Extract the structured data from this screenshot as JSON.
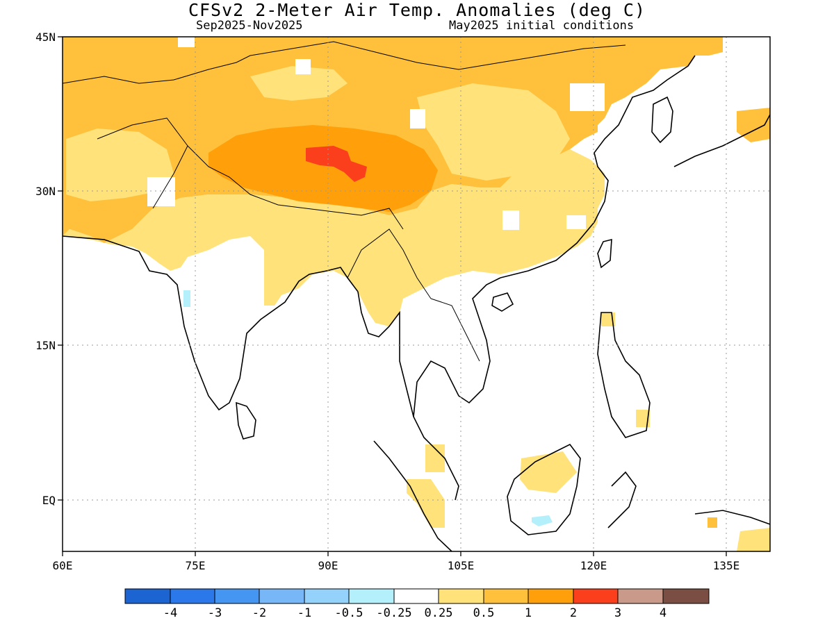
{
  "title": "CFSv2 2-Meter Air Temp. Anomalies (deg C)",
  "subtitle_left": "Sep2025-Nov2025",
  "subtitle_right": "May2025 initial conditions",
  "map": {
    "lon_range": [
      60,
      140
    ],
    "lat_range": [
      -5.5,
      45
    ],
    "lon_ticks": [
      "60E",
      "75E",
      "90E",
      "105E",
      "120E",
      "135E"
    ],
    "lat_ticks": [
      "45N",
      "30N",
      "15N",
      "EQ"
    ],
    "grid": "dotted"
  },
  "legend": {
    "labels": [
      "-4",
      "-3",
      "-2",
      "-1",
      "-0.5",
      "-0.25",
      "0.25",
      "0.5",
      "1",
      "2",
      "3",
      "4"
    ],
    "colors": [
      "#1b64d2",
      "#2b78ea",
      "#4596f2",
      "#78b7f7",
      "#94d1fb",
      "#b4f0fb",
      "#ffffff",
      "#ffe27a",
      "#ffc03c",
      "#ffa00a",
      "#fb3f1c",
      "#c99a8a",
      "#7a4e42"
    ]
  },
  "anomaly_regions": [
    {
      "category": "0.25 to 0.5",
      "color": "#ffe27a",
      "area": "India, southern China, northern Indochina, Myanmar"
    },
    {
      "category": "0.5 to 1",
      "color": "#ffc03c",
      "area": "Central Asia, Mongolia, northern & central China"
    },
    {
      "category": "1 to 2",
      "color": "#ffa00a",
      "area": "Tibetan Plateau"
    },
    {
      "category": "2 to 3",
      "color": "#fb3f1c",
      "area": "Central Tibetan Plateau"
    },
    {
      "category": "-0.5 to -0.25",
      "color": "#b4f0fb",
      "area": "Southern India, Borneo"
    }
  ]
}
